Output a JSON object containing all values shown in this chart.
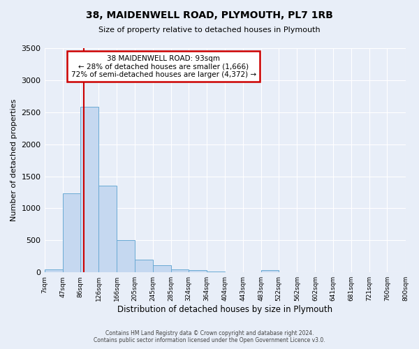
{
  "title": "38, MAIDENWELL ROAD, PLYMOUTH, PL7 1RB",
  "subtitle": "Size of property relative to detached houses in Plymouth",
  "xlabel": "Distribution of detached houses by size in Plymouth",
  "ylabel": "Number of detached properties",
  "bin_edges": [
    7,
    47,
    86,
    126,
    166,
    205,
    245,
    285,
    324,
    364,
    404,
    443,
    483,
    522,
    562,
    602,
    641,
    681,
    721,
    760,
    800
  ],
  "bin_labels": [
    "7sqm",
    "47sqm",
    "86sqm",
    "126sqm",
    "166sqm",
    "205sqm",
    "245sqm",
    "285sqm",
    "324sqm",
    "364sqm",
    "404sqm",
    "443sqm",
    "483sqm",
    "522sqm",
    "562sqm",
    "602sqm",
    "641sqm",
    "681sqm",
    "721sqm",
    "760sqm",
    "800sqm"
  ],
  "bar_heights": [
    50,
    1230,
    2590,
    1350,
    500,
    200,
    110,
    50,
    30,
    10,
    5,
    2,
    30,
    5,
    2,
    2,
    0,
    0,
    0,
    2
  ],
  "bar_color": "#c5d8f0",
  "bar_edge_color": "#6aaad4",
  "ylim": [
    0,
    3500
  ],
  "yticks": [
    0,
    500,
    1000,
    1500,
    2000,
    2500,
    3000,
    3500
  ],
  "red_line_x": 93,
  "annotation_title": "38 MAIDENWELL ROAD: 93sqm",
  "annotation_line1": "← 28% of detached houses are smaller (1,666)",
  "annotation_line2": "72% of semi-detached houses are larger (4,372) →",
  "annotation_box_color": "#ffffff",
  "annotation_box_edge": "#cc0000",
  "red_line_color": "#cc0000",
  "footer_line1": "Contains HM Land Registry data © Crown copyright and database right 2024.",
  "footer_line2": "Contains public sector information licensed under the Open Government Licence v3.0.",
  "background_color": "#e8eef8",
  "grid_color": "#ffffff"
}
